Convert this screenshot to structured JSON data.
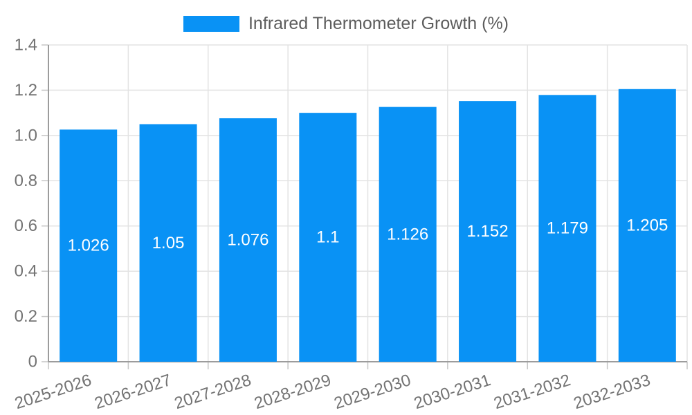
{
  "chart_data": {
    "type": "bar",
    "title": "",
    "legend": {
      "label": "Infrared Thermometer Growth (%)",
      "position": "top"
    },
    "categories": [
      "2025-2026",
      "2026-2027",
      "2027-2028",
      "2028-2029",
      "2029-2030",
      "2030-2031",
      "2031-2032",
      "2032-2033"
    ],
    "values": [
      1.026,
      1.05,
      1.076,
      1.1,
      1.126,
      1.152,
      1.179,
      1.205
    ],
    "value_labels": [
      "1.026",
      "1.05",
      "1.076",
      "1.1",
      "1.126",
      "1.152",
      "1.179",
      "1.205"
    ],
    "xlabel": "",
    "ylabel": "",
    "ylim": [
      0,
      1.4
    ],
    "ytick_step": 0.2,
    "ytick_labels": [
      "0",
      "0.2",
      "0.4",
      "0.6",
      "0.8",
      "1.0",
      "1.2",
      "1.4"
    ],
    "grid": true,
    "x_label_rotation_deg": -18,
    "colors": {
      "bar": "#0992f5",
      "grid": "#e3e3e3",
      "axis": "#9c9c9c",
      "tick": "#c6c6c6",
      "axis_label": "#737373",
      "legend_text": "#5d5d5d",
      "value_label": "#ffffff"
    }
  }
}
